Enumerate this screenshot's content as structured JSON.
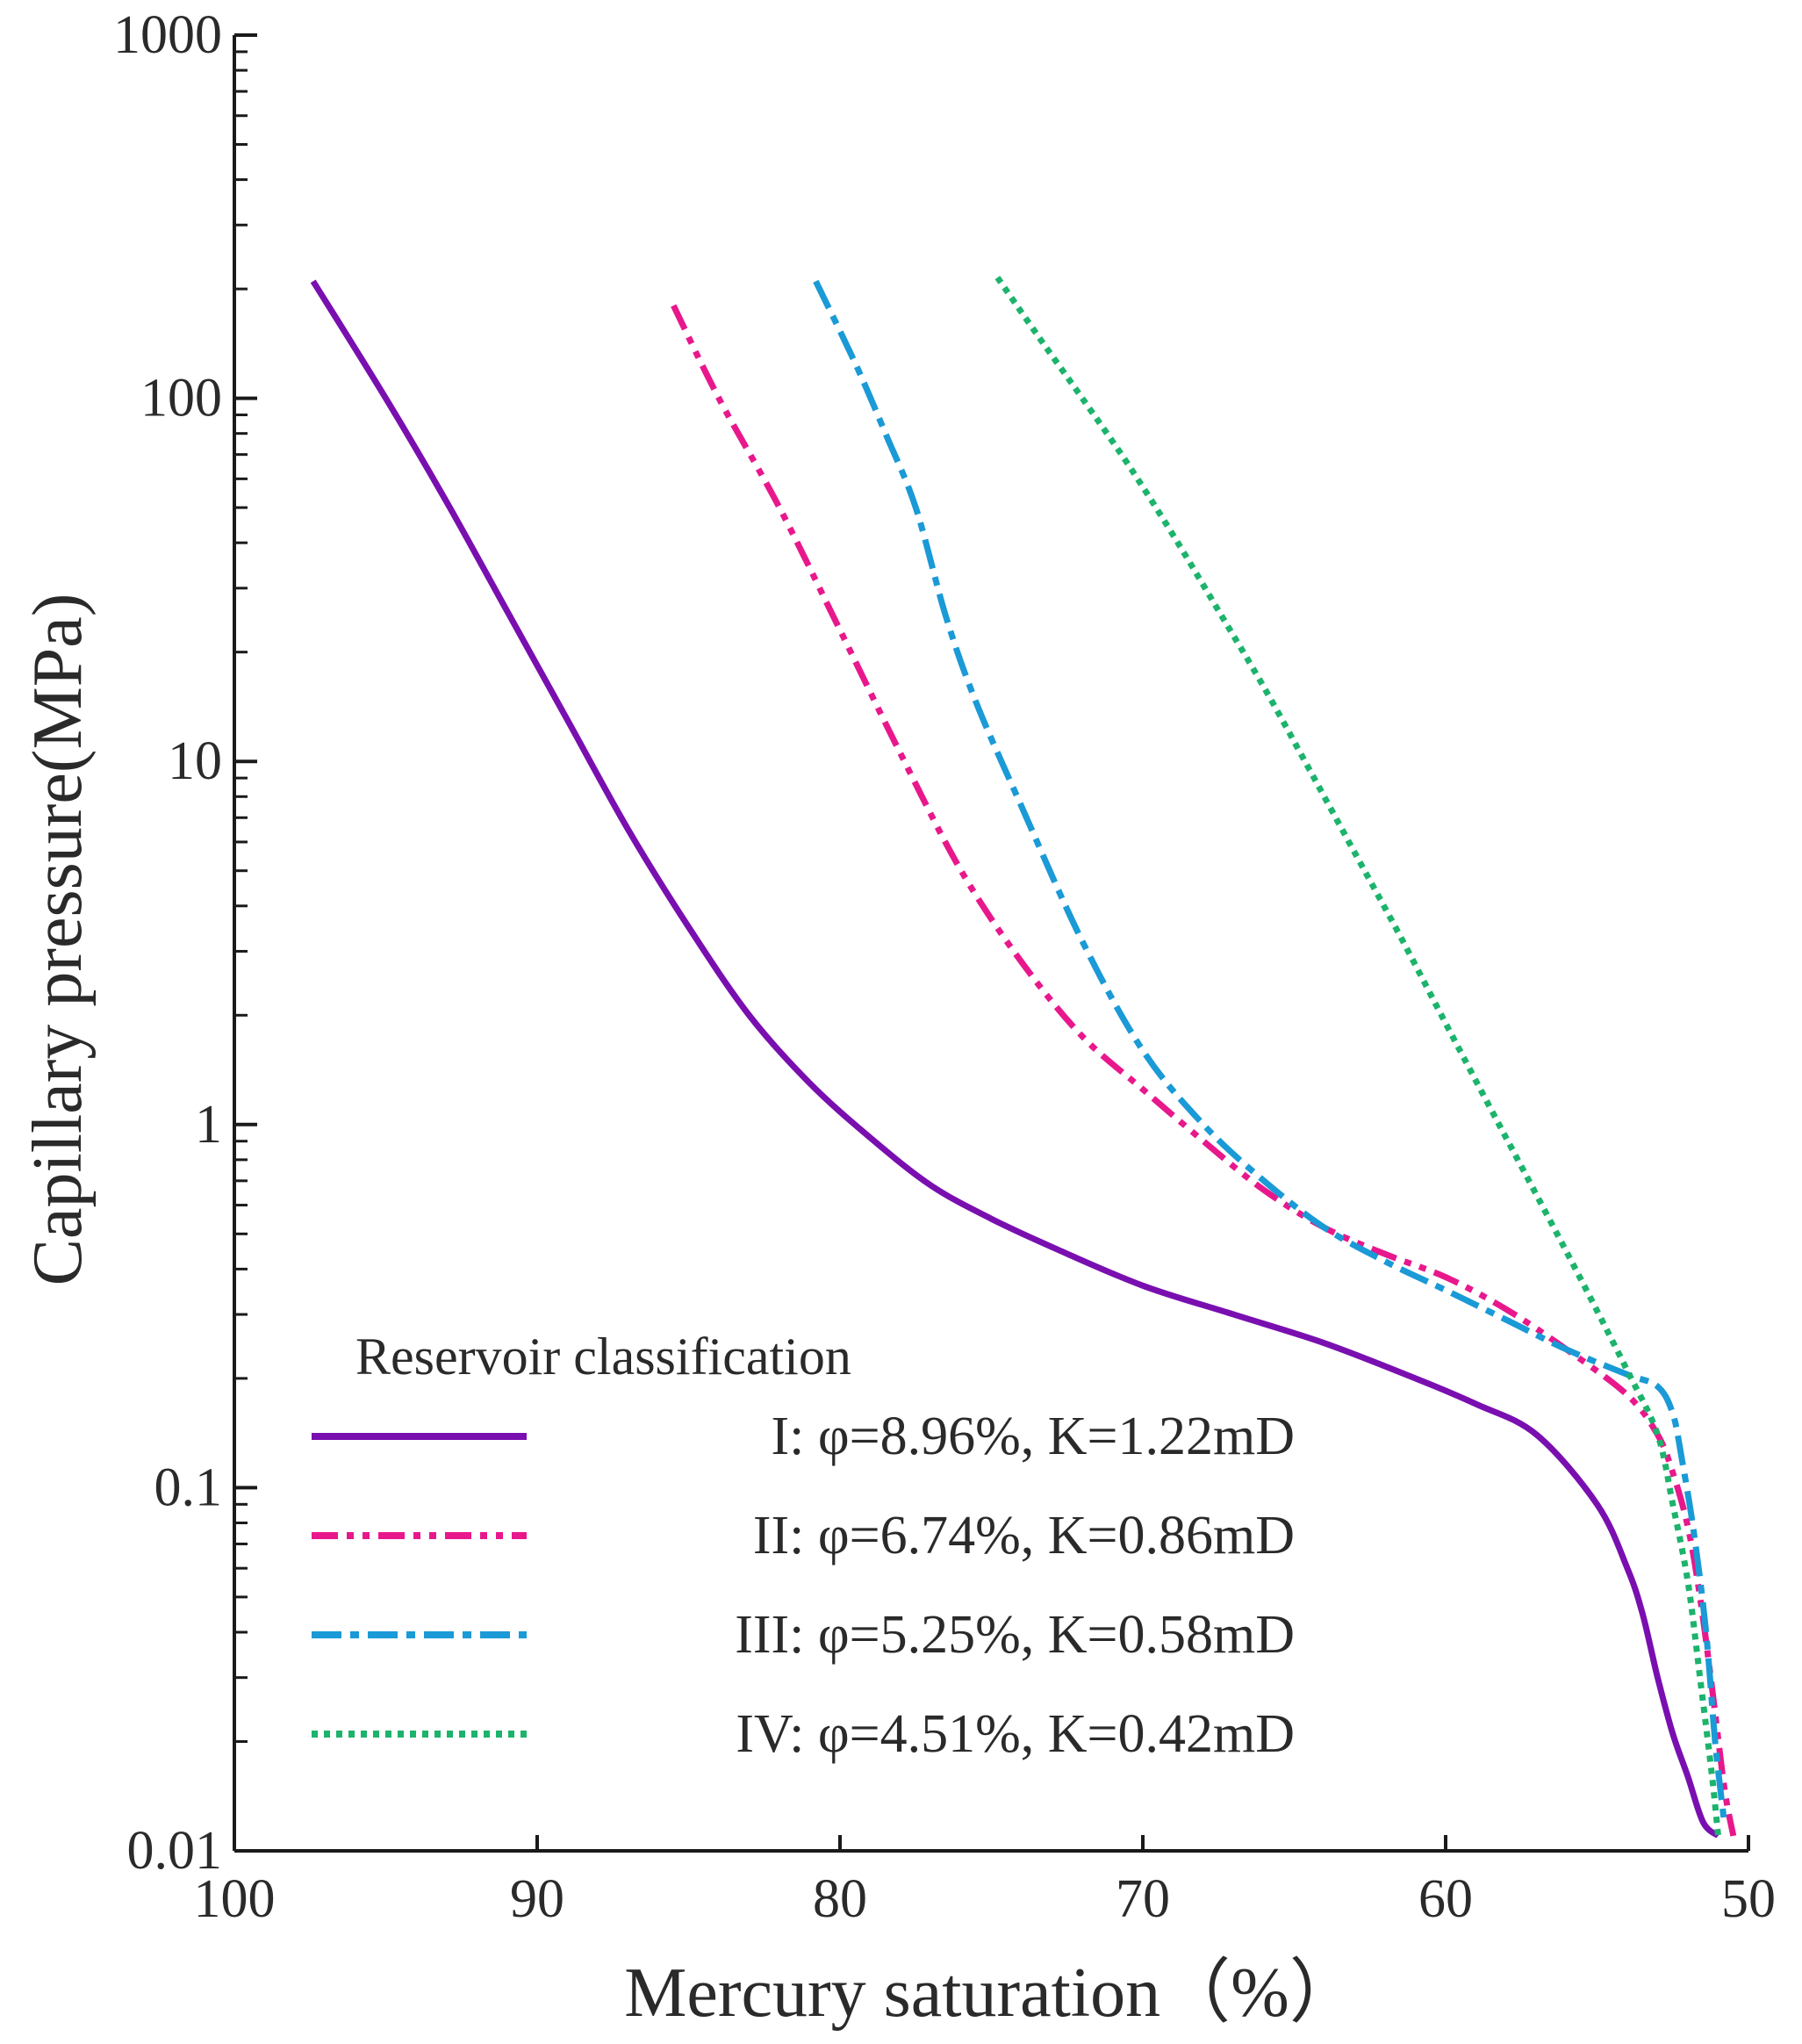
{
  "chart_data": {
    "type": "line",
    "title": "",
    "xlabel": "Mercury saturation（%）",
    "ylabel": "Capillary pressure(MPa)",
    "xlim": [
      100,
      50
    ],
    "ylim": [
      0.01,
      1000
    ],
    "yscale": "log",
    "grid": false,
    "x_ticks": [
      "100",
      "90",
      "80",
      "70",
      "60",
      "50"
    ],
    "x_tick_values": [
      100,
      90,
      80,
      70,
      60,
      50
    ],
    "y_ticks": [
      "0.01",
      "0.1",
      "1",
      "10",
      "100",
      "1000"
    ],
    "y_tick_values": [
      0.01,
      0.1,
      1,
      10,
      100,
      1000
    ],
    "legend": {
      "title": "Reservoir classification",
      "placement": "bottom-left"
    },
    "series": [
      {
        "name": "I: φ=8.96%, K=1.22mD",
        "color": "#7a0fb0",
        "style": "solid",
        "x": [
          97.4,
          95,
          93,
          91,
          89,
          87,
          85,
          83,
          81,
          79,
          77,
          75,
          73,
          70,
          67,
          64,
          61,
          59,
          57,
          55,
          54,
          53.5,
          53,
          52.5,
          52,
          51.5,
          51
        ],
        "y": [
          210,
          100,
          52,
          26,
          13,
          6.5,
          3.5,
          2.0,
          1.3,
          0.92,
          0.68,
          0.55,
          0.46,
          0.36,
          0.3,
          0.25,
          0.2,
          0.17,
          0.14,
          0.09,
          0.06,
          0.045,
          0.03,
          0.021,
          0.016,
          0.012,
          0.011
        ]
      },
      {
        "name": "II: φ=6.74%, K=0.86mD",
        "color": "#e8188c",
        "style": "dashdotdot",
        "x": [
          85.5,
          84,
          82,
          80,
          78,
          76,
          74,
          72,
          70,
          68,
          66,
          64,
          62,
          60,
          58,
          56,
          54,
          53,
          52.5,
          52,
          51.6,
          51.2,
          50.8,
          50.5
        ],
        "y": [
          180,
          100,
          50,
          23,
          10.5,
          5.0,
          2.8,
          1.75,
          1.25,
          0.9,
          0.66,
          0.52,
          0.44,
          0.38,
          0.31,
          0.24,
          0.18,
          0.14,
          0.11,
          0.078,
          0.05,
          0.028,
          0.015,
          0.011
        ]
      },
      {
        "name": "III: φ=5.25%, K=0.58mD",
        "color": "#1a9ad6",
        "style": "dashdot",
        "x": [
          80.8,
          79.5,
          78.5,
          77.5,
          76.5,
          75.5,
          74,
          72,
          70,
          68,
          66,
          64,
          62,
          60,
          58,
          56,
          54,
          53,
          52.5,
          52.2,
          51.8,
          51.4,
          51.1,
          50.8
        ],
        "y": [
          210,
          125,
          80,
          50,
          25,
          14.5,
          7.5,
          3.2,
          1.6,
          1.0,
          0.7,
          0.52,
          0.42,
          0.35,
          0.29,
          0.24,
          0.205,
          0.19,
          0.16,
          0.12,
          0.075,
          0.04,
          0.02,
          0.012
        ]
      },
      {
        "name": "IV: φ=4.51%, K=0.42mD",
        "color": "#1cb36c",
        "style": "dotted",
        "x": [
          74.8,
          73.5,
          72,
          70.5,
          69,
          67.5,
          66,
          64.5,
          63,
          61.5,
          60,
          58.5,
          57,
          55.5,
          54,
          53,
          52.5,
          52,
          51.6,
          51.2,
          51
        ],
        "y": [
          215,
          150,
          100,
          66,
          42,
          26,
          16,
          9.5,
          5.6,
          3.3,
          1.9,
          1.1,
          0.64,
          0.37,
          0.21,
          0.14,
          0.09,
          0.055,
          0.03,
          0.016,
          0.011
        ]
      }
    ]
  }
}
